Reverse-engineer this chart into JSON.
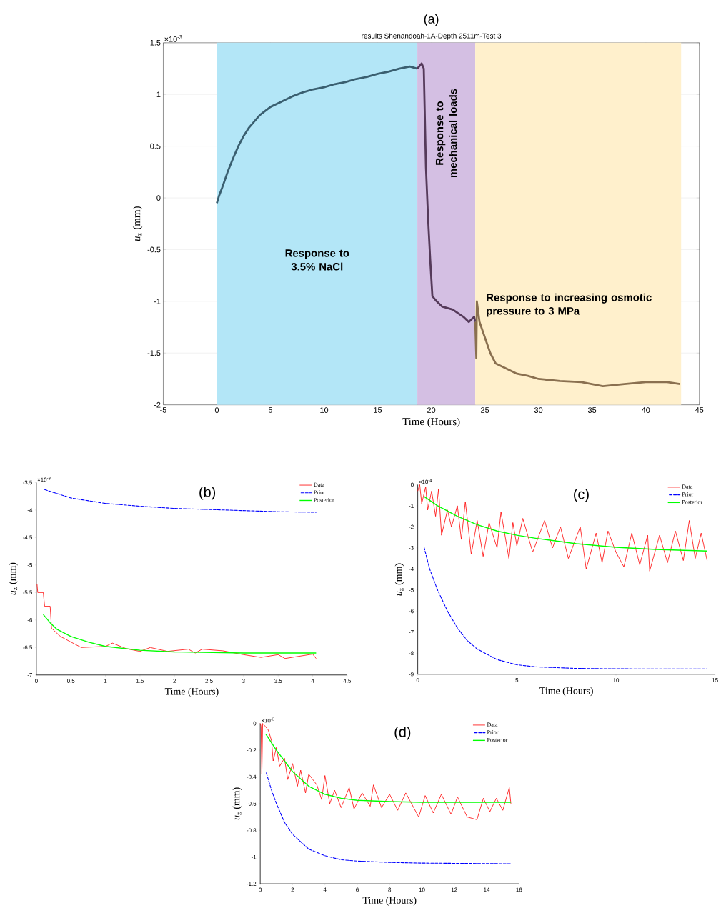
{
  "chart_data": [
    {
      "type": "line",
      "title": "(a)",
      "subtitle": "results Shenandoah-1A-Depth 2511m-Test 3",
      "xlabel": "Time (Hours)",
      "ylabel": "*u*$_{z}$ (mm)",
      "annotations": [
        "×10$^{-3}$"
      ],
      "xlim": [
        -5,
        45
      ],
      "xticks": [
        -5,
        0,
        5,
        10,
        15,
        20,
        25,
        30,
        35,
        40,
        45
      ],
      "ylim": [
        -2,
        1.5
      ],
      "yticks": [
        -2,
        -1.5,
        -1,
        -0.5,
        0,
        0.5,
        1,
        1.5
      ],
      "grid": true,
      "bands": [
        {
          "axis": "x",
          "from": 0,
          "to": 18.7,
          "label": "Response to 3.5% NaCl",
          "color": "#b3e6f7"
        },
        {
          "axis": "x",
          "from": 18.7,
          "to": 24.1,
          "label": "Response to mechanical loads",
          "color": "#d4bfe3"
        },
        {
          "axis": "x",
          "from": 24.1,
          "to": 43.3,
          "label": "Response to increasing osmotic pressure to 3 MPa",
          "color": "#fff0cc"
        }
      ],
      "series": [
        {
          "color": "#3a5f70",
          "x": [
            0,
            0.2,
            0.5,
            1,
            1.5,
            2,
            2.5,
            3,
            4,
            5,
            6,
            7,
            8,
            9,
            10,
            11,
            12,
            13,
            14,
            15,
            16,
            17,
            18,
            18.7
          ],
          "values": [
            -0.05,
            0.02,
            0.1,
            0.25,
            0.38,
            0.5,
            0.6,
            0.68,
            0.8,
            0.88,
            0.93,
            0.98,
            1.02,
            1.05,
            1.07,
            1.1,
            1.12,
            1.15,
            1.17,
            1.2,
            1.22,
            1.25,
            1.27,
            1.25
          ]
        },
        {
          "color": "#553a5a",
          "x": [
            18.7,
            19.1,
            19.3,
            19.5,
            19.7,
            19.9,
            20.1,
            20.5,
            21,
            22,
            23,
            23.5,
            24,
            24.1
          ],
          "values": [
            1.25,
            1.3,
            1.25,
            0.3,
            -0.2,
            -0.6,
            -0.95,
            -1.0,
            -1.05,
            -1.08,
            -1.15,
            -1.2,
            -1.15,
            -1.2
          ]
        },
        {
          "color": "#8a7050",
          "x": [
            24.1,
            24.2,
            24.25,
            24.5,
            25,
            25.5,
            26,
            27,
            28,
            29,
            30,
            32,
            34,
            36,
            38,
            40,
            42,
            43.2
          ],
          "values": [
            -1.2,
            -1.55,
            -1.0,
            -1.2,
            -1.35,
            -1.5,
            -1.6,
            -1.65,
            -1.7,
            -1.72,
            -1.75,
            -1.77,
            -1.78,
            -1.82,
            -1.8,
            -1.78,
            -1.78,
            -1.8
          ]
        }
      ]
    },
    {
      "type": "line",
      "title": "(b)",
      "xlabel": "Time (Hours)",
      "ylabel": "*u*$_{z}$ (mm)",
      "annotations": [
        "×10$^{-3}$"
      ],
      "xlim": [
        0,
        4.5
      ],
      "xticks": [
        0,
        0.5,
        1,
        1.5,
        2,
        2.5,
        3,
        3.5,
        4,
        4.5
      ],
      "ylim": [
        -7,
        -3.5
      ],
      "yticks": [
        -7,
        -6.5,
        -6,
        -5.5,
        -5,
        -4.5,
        -4,
        -3.5
      ],
      "legend": "top right",
      "series": [
        {
          "name": "Data",
          "color": "#ff0000",
          "line_style": "solid",
          "x": [
            0.01,
            0.02,
            0.1,
            0.12,
            0.2,
            0.22,
            0.35,
            0.5,
            0.65,
            1,
            1.1,
            1.3,
            1.5,
            1.65,
            1.9,
            2.2,
            2.3,
            2.4,
            2.7,
            3,
            3.25,
            3.5,
            3.6,
            4,
            4.05
          ],
          "values": [
            -5.35,
            -5.5,
            -5.5,
            -5.75,
            -5.75,
            -6.15,
            -6.3,
            -6.4,
            -6.5,
            -6.48,
            -6.42,
            -6.52,
            -6.57,
            -6.5,
            -6.57,
            -6.53,
            -6.6,
            -6.53,
            -6.56,
            -6.63,
            -6.68,
            -6.63,
            -6.7,
            -6.62,
            -6.7
          ]
        },
        {
          "name": "Prior",
          "color": "#0000ff",
          "line_style": "dashed",
          "x": [
            0.1,
            0.5,
            1,
            1.5,
            2,
            2.5,
            3,
            3.5,
            4.05
          ],
          "values": [
            -3.62,
            -3.78,
            -3.88,
            -3.93,
            -3.97,
            -3.99,
            -4.01,
            -4.03,
            -4.04
          ]
        },
        {
          "name": "Posterior",
          "color": "#00ff00",
          "line_style": "solid",
          "x": [
            0.1,
            0.2,
            0.3,
            0.5,
            0.75,
            1,
            1.5,
            2,
            3,
            4.05
          ],
          "values": [
            -5.9,
            -6.05,
            -6.17,
            -6.3,
            -6.4,
            -6.48,
            -6.55,
            -6.58,
            -6.6,
            -6.6
          ]
        }
      ]
    },
    {
      "type": "line",
      "title": "(c)",
      "xlabel": "Time (Hours)",
      "ylabel": "*u*$_{z}$ (mm)",
      "annotations": [
        "×10$^{-4}$"
      ],
      "xlim": [
        0,
        15
      ],
      "xticks": [
        0,
        5,
        10,
        15
      ],
      "ylim": [
        -9,
        0
      ],
      "yticks": [
        -9,
        -8,
        -7,
        -6,
        -5,
        -4,
        -3,
        -2,
        -1,
        0
      ],
      "legend": "top right",
      "series": [
        {
          "name": "Data",
          "color": "#ff0000",
          "line_style": "solid",
          "x": [
            0,
            0.1,
            0.2,
            0.4,
            0.5,
            0.7,
            0.9,
            1.05,
            1.2,
            1.5,
            1.7,
            2,
            2.2,
            2.4,
            2.7,
            3,
            3.3,
            3.6,
            4,
            4.2,
            4.6,
            4.8,
            5.0,
            5.3,
            5.8,
            6.4,
            6.8,
            7.2,
            7.6,
            8.2,
            8.5,
            9.0,
            9.3,
            9.6,
            10.0,
            10.4,
            10.8,
            11.2,
            11.6,
            11.7,
            12.2,
            12.6,
            13.0,
            13.4,
            13.7,
            14.0,
            14.3,
            14.6
          ],
          "values": [
            -0.3,
            0,
            -0.9,
            -0.1,
            -1.2,
            -0.3,
            -1.5,
            -0.2,
            -2.4,
            -1.2,
            -2.0,
            -1.0,
            -2.6,
            -0.8,
            -3.3,
            -1.7,
            -3.4,
            -1.8,
            -3.0,
            -1.3,
            -3.5,
            -1.8,
            -2.9,
            -1.6,
            -3.2,
            -1.7,
            -3.0,
            -2.0,
            -3.5,
            -2.0,
            -4.0,
            -2.3,
            -3.7,
            -2.2,
            -3.2,
            -3.9,
            -2.3,
            -3.8,
            -2.4,
            -4.1,
            -2.4,
            -3.7,
            -2.2,
            -3.6,
            -1.7,
            -3.5,
            -2.3,
            -3.6
          ]
        },
        {
          "name": "Prior",
          "color": "#0000ff",
          "line_style": "dashed",
          "x": [
            0.3,
            0.6,
            1,
            1.5,
            2,
            2.5,
            3,
            4,
            5,
            6,
            8,
            10,
            14.6
          ],
          "values": [
            -2.9,
            -4.0,
            -5.0,
            -6.0,
            -6.8,
            -7.4,
            -7.8,
            -8.3,
            -8.55,
            -8.65,
            -8.72,
            -8.74,
            -8.75
          ]
        },
        {
          "name": "Posterior",
          "color": "#00ff00",
          "line_style": "solid",
          "x": [
            0.3,
            1,
            2,
            3,
            4,
            5,
            6,
            8,
            10,
            12,
            14.6
          ],
          "values": [
            -0.55,
            -1.0,
            -1.5,
            -1.9,
            -2.2,
            -2.4,
            -2.55,
            -2.8,
            -2.97,
            -3.07,
            -3.15
          ]
        }
      ]
    },
    {
      "type": "line",
      "title": "(d)",
      "xlabel": "Time (Hours)",
      "ylabel": "*u*$_{z}$ (mm)",
      "annotations": [
        "×10$^{-3}$"
      ],
      "xlim": [
        0,
        16
      ],
      "xticks": [
        0,
        2,
        4,
        6,
        8,
        10,
        12,
        14,
        16
      ],
      "ylim": [
        -1.2,
        0
      ],
      "yticks": [
        -1.2,
        -1,
        -0.8,
        -0.6,
        -0.4,
        -0.2,
        0
      ],
      "legend": "top right",
      "series": [
        {
          "name": "Data",
          "color": "#ff0000",
          "line_style": "solid",
          "x": [
            0,
            0.05,
            0.1,
            0.15,
            0.3,
            0.5,
            0.7,
            0.8,
            1,
            1.2,
            1.5,
            1.7,
            2,
            2.3,
            2.5,
            2.8,
            3,
            3.5,
            3.8,
            4,
            4.3,
            4.6,
            5,
            5.5,
            5.8,
            6.3,
            6.8,
            7,
            7.5,
            8,
            8.5,
            9,
            9.8,
            10.2,
            10.7,
            11.2,
            11.8,
            12.2,
            12.8,
            13.4,
            13.8,
            14.2,
            14.6,
            15,
            15.4,
            15.5
          ],
          "values": [
            0,
            -0.02,
            -0.38,
            0,
            -0.02,
            -0.05,
            -0.13,
            -0.28,
            -0.18,
            -0.32,
            -0.26,
            -0.42,
            -0.3,
            -0.47,
            -0.35,
            -0.52,
            -0.38,
            -0.46,
            -0.57,
            -0.39,
            -0.6,
            -0.5,
            -0.63,
            -0.48,
            -0.64,
            -0.52,
            -0.62,
            -0.46,
            -0.63,
            -0.53,
            -0.65,
            -0.52,
            -0.7,
            -0.54,
            -0.67,
            -0.53,
            -0.68,
            -0.55,
            -0.7,
            -0.72,
            -0.56,
            -0.66,
            -0.56,
            -0.65,
            -0.48,
            -0.6
          ]
        },
        {
          "name": "Prior",
          "color": "#0000ff",
          "line_style": "dashed",
          "x": [
            0.35,
            0.7,
            1,
            1.5,
            2,
            3,
            4,
            5,
            6,
            8,
            10,
            15.5
          ],
          "values": [
            -0.36,
            -0.5,
            -0.6,
            -0.74,
            -0.83,
            -0.94,
            -0.99,
            -1.02,
            -1.03,
            -1.04,
            -1.045,
            -1.05
          ]
        },
        {
          "name": "Posterior",
          "color": "#00ff00",
          "line_style": "solid",
          "x": [
            0.35,
            1,
            2,
            3,
            4,
            5,
            6,
            8,
            10,
            15.5
          ],
          "values": [
            -0.08,
            -0.2,
            -0.36,
            -0.47,
            -0.53,
            -0.56,
            -0.575,
            -0.585,
            -0.59,
            -0.59
          ]
        }
      ]
    }
  ]
}
